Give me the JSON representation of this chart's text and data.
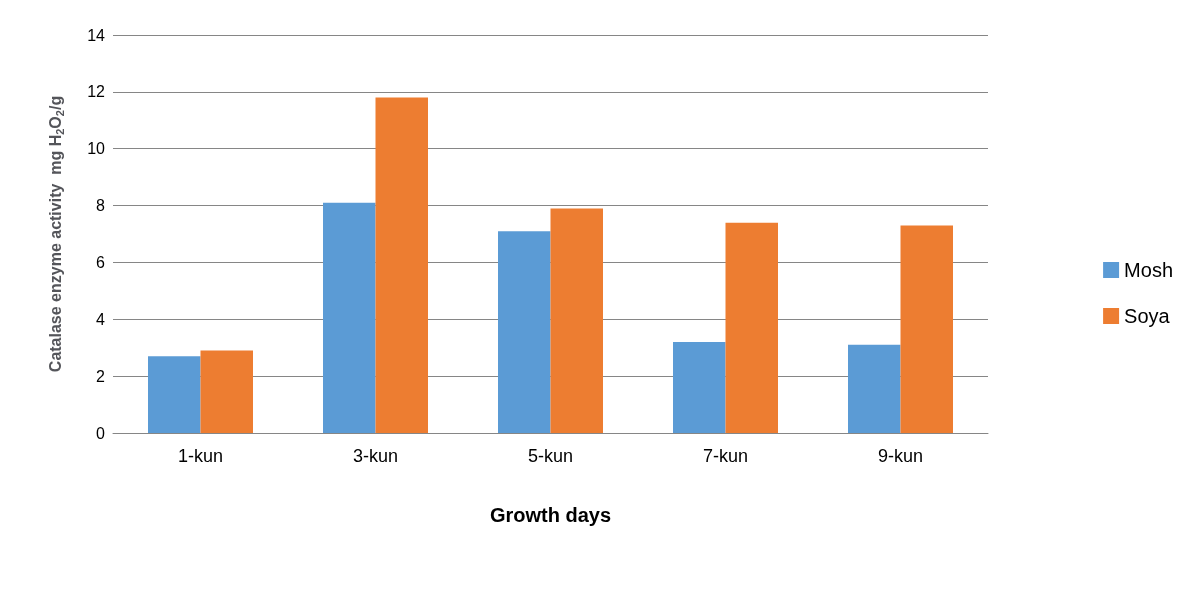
{
  "chart_data": {
    "type": "bar",
    "xlabel": "Growth days",
    "ylabel": "Catalase enzyme activity  mg H$_{2}$O$_{2}$/g",
    "categories": [
      "1-kun",
      "3-kun",
      "5-kun",
      "7-kun",
      "9-kun"
    ],
    "series": [
      {
        "name": "Mosh",
        "color": "#5b9bd5",
        "values": [
          2.7,
          8.1,
          7.1,
          3.2,
          3.1
        ]
      },
      {
        "name": "Soya",
        "color": "#ed7d31",
        "values": [
          2.9,
          11.8,
          7.9,
          7.4,
          7.3
        ]
      }
    ],
    "ylim": [
      0,
      14
    ],
    "yticks": [
      0,
      2,
      4,
      6,
      8,
      10,
      12,
      14
    ],
    "grid": "y",
    "legend": "right"
  }
}
